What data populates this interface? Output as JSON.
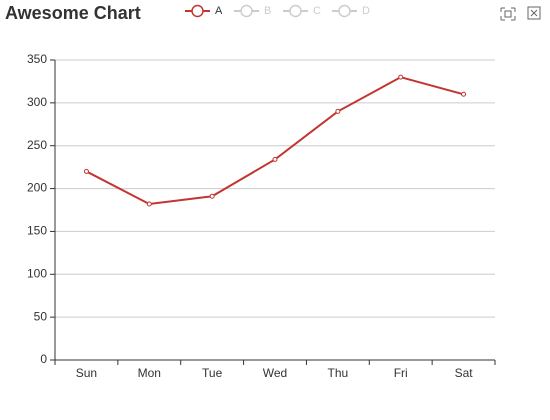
{
  "chart_data": {
    "type": "line",
    "title": "Awesome Chart",
    "categories": [
      "Sun",
      "Mon",
      "Tue",
      "Wed",
      "Thu",
      "Fri",
      "Sat"
    ],
    "series": [
      {
        "name": "A",
        "color": "#c23531",
        "values": [
          220,
          182,
          191,
          234,
          290,
          330,
          310
        ]
      },
      {
        "name": "B",
        "visible": false
      },
      {
        "name": "C",
        "visible": false
      },
      {
        "name": "D",
        "visible": false
      }
    ],
    "ylim": [
      0,
      350
    ],
    "yticks": [
      0,
      50,
      100,
      150,
      200,
      250,
      300,
      350
    ],
    "grid": true
  }
}
